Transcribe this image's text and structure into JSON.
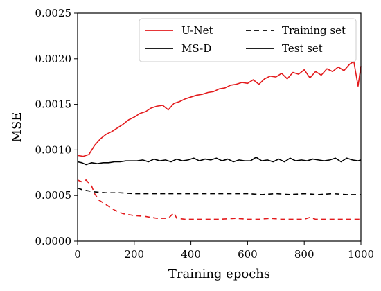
{
  "chart_data": {
    "type": "line",
    "xlabel": "Training epochs",
    "ylabel": "MSE",
    "xlim": [
      0,
      1000
    ],
    "ylim": [
      0,
      0.0025
    ],
    "xticks": [
      "0",
      "200",
      "400",
      "600",
      "800",
      "1000"
    ],
    "xtick_values": [
      0,
      200,
      400,
      600,
      800,
      1000
    ],
    "yticks": [
      "0.0000",
      "0.0005",
      "0.0010",
      "0.0015",
      "0.0020",
      "0.0025"
    ],
    "ytick_values": [
      0,
      0.0005,
      0.001,
      0.0015,
      0.002,
      0.0025
    ],
    "legend": {
      "placement": "top-right",
      "entries": [
        {
          "label": "U-Net",
          "color": "#e31a1c",
          "style": "solid"
        },
        {
          "label": "Training set",
          "color": "#000000",
          "style": "dashed"
        },
        {
          "label": "MS-D",
          "color": "#000000",
          "style": "solid"
        },
        {
          "label": "Test set",
          "color": "#000000",
          "style": "solid"
        }
      ]
    },
    "grid": false,
    "series": [
      {
        "name": "U-Net",
        "split": "Test set",
        "color": "#e31a1c",
        "style": "solid",
        "x": [
          0,
          20,
          40,
          60,
          80,
          100,
          120,
          140,
          160,
          180,
          200,
          220,
          240,
          260,
          280,
          300,
          320,
          340,
          360,
          380,
          400,
          420,
          440,
          460,
          480,
          500,
          520,
          540,
          560,
          580,
          600,
          620,
          640,
          660,
          680,
          700,
          720,
          740,
          760,
          780,
          800,
          820,
          840,
          860,
          880,
          900,
          920,
          940,
          960,
          975,
          990,
          1000
        ],
        "y": [
          0.00094,
          0.00093,
          0.00095,
          0.00105,
          0.00112,
          0.00117,
          0.0012,
          0.00124,
          0.00128,
          0.00133,
          0.00136,
          0.0014,
          0.00142,
          0.00146,
          0.00148,
          0.00149,
          0.00144,
          0.00151,
          0.00153,
          0.00156,
          0.00158,
          0.0016,
          0.00161,
          0.00163,
          0.00164,
          0.00167,
          0.00168,
          0.00171,
          0.00172,
          0.00174,
          0.00173,
          0.00177,
          0.00172,
          0.00178,
          0.00181,
          0.0018,
          0.00184,
          0.00178,
          0.00185,
          0.00183,
          0.00188,
          0.00179,
          0.00186,
          0.00182,
          0.00189,
          0.00186,
          0.00191,
          0.00187,
          0.00194,
          0.00197,
          0.0017,
          0.00192
        ]
      },
      {
        "name": "U-Net",
        "split": "Training set",
        "color": "#e31a1c",
        "style": "dashed",
        "x": [
          0,
          15,
          30,
          50,
          60,
          75,
          100,
          130,
          160,
          200,
          240,
          280,
          320,
          340,
          350,
          380,
          420,
          460,
          500,
          560,
          600,
          640,
          680,
          720,
          760,
          800,
          820,
          840,
          880,
          920,
          960,
          1000
        ],
        "y": [
          0.00067,
          0.00065,
          0.00067,
          0.0006,
          0.00052,
          0.00045,
          0.0004,
          0.00034,
          0.0003,
          0.00028,
          0.00027,
          0.00025,
          0.00025,
          0.00031,
          0.00025,
          0.00024,
          0.00024,
          0.00024,
          0.00024,
          0.00025,
          0.00024,
          0.00024,
          0.00025,
          0.00024,
          0.00024,
          0.00024,
          0.00026,
          0.00024,
          0.00024,
          0.00024,
          0.00024,
          0.00024
        ]
      },
      {
        "name": "MS-D",
        "split": "Test set",
        "color": "#000000",
        "style": "solid",
        "x": [
          0,
          15,
          30,
          50,
          70,
          90,
          110,
          130,
          150,
          170,
          190,
          210,
          230,
          250,
          270,
          290,
          310,
          330,
          350,
          370,
          390,
          410,
          430,
          450,
          470,
          490,
          510,
          530,
          550,
          570,
          590,
          610,
          630,
          650,
          670,
          690,
          710,
          730,
          750,
          770,
          790,
          810,
          830,
          850,
          870,
          890,
          910,
          930,
          950,
          970,
          990,
          1000
        ],
        "y": [
          0.00087,
          0.00086,
          0.00084,
          0.00086,
          0.00085,
          0.00086,
          0.00086,
          0.00087,
          0.00087,
          0.00088,
          0.00088,
          0.00088,
          0.00089,
          0.00087,
          0.0009,
          0.00088,
          0.00089,
          0.00087,
          0.0009,
          0.00088,
          0.00089,
          0.00091,
          0.00088,
          0.0009,
          0.00089,
          0.00091,
          0.00088,
          0.0009,
          0.00087,
          0.00089,
          0.00088,
          0.00088,
          0.00092,
          0.00088,
          0.00089,
          0.00087,
          0.0009,
          0.00087,
          0.00091,
          0.00088,
          0.00089,
          0.00088,
          0.0009,
          0.00089,
          0.00088,
          0.00089,
          0.00091,
          0.00087,
          0.00091,
          0.00089,
          0.00088,
          0.00089
        ]
      },
      {
        "name": "MS-D",
        "split": "Training set",
        "color": "#000000",
        "style": "dashed",
        "x": [
          0,
          20,
          40,
          60,
          100,
          150,
          200,
          250,
          300,
          350,
          400,
          450,
          500,
          550,
          600,
          650,
          700,
          750,
          800,
          850,
          900,
          950,
          1000
        ],
        "y": [
          0.00058,
          0.00056,
          0.00055,
          0.00054,
          0.00053,
          0.00053,
          0.00052,
          0.00052,
          0.00052,
          0.00052,
          0.00052,
          0.00052,
          0.00052,
          0.00052,
          0.00052,
          0.00051,
          0.00052,
          0.00051,
          0.00052,
          0.00051,
          0.00052,
          0.00051,
          0.00051
        ]
      }
    ]
  }
}
